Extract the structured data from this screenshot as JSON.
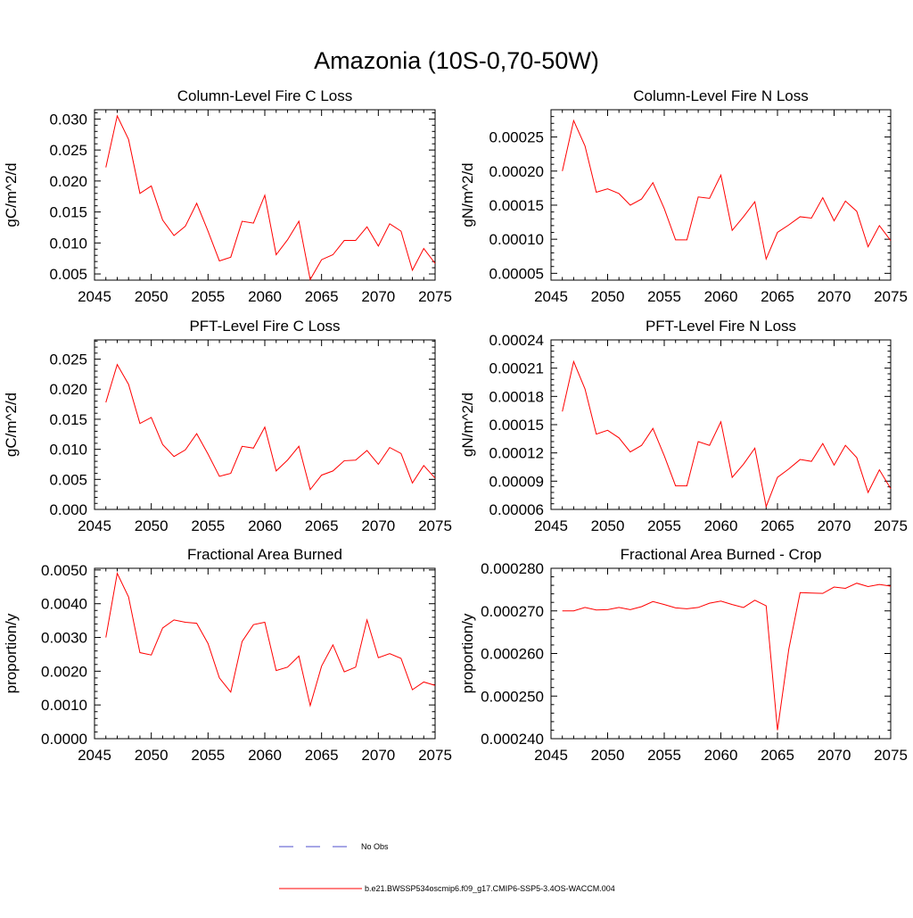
{
  "figure_title": "Amazonia (10S-0,70-50W)",
  "legend": {
    "obs_label": "No Obs",
    "model_label": "b.e21.BWSSP534oscmip6.f09_g17.CMIP6-SSP5-3.4OS-WACCM.004",
    "colors": {
      "obs": "#4d4dcc",
      "model": "#ff0000"
    }
  },
  "chart_data": [
    {
      "type": "line",
      "title": "Column-Level Fire C Loss",
      "xlabel": "",
      "ylabel": "gC/m^2/d",
      "xlim": [
        2045,
        2075
      ],
      "ylim": [
        0.004,
        0.0315
      ],
      "x_ticks": [
        "2045",
        "2050",
        "2055",
        "2060",
        "2065",
        "2070",
        "2075"
      ],
      "y_ticks": [
        "0.005",
        "0.010",
        "0.015",
        "0.020",
        "0.025",
        "0.030"
      ],
      "y_tick_values": [
        0.005,
        0.01,
        0.015,
        0.02,
        0.025,
        0.03
      ],
      "series": [
        {
          "name": "b.e21.BWSSP534oscmip6.f09_g17.CMIP6-SSP5-3.4OS-WACCM.004",
          "x": [
            2046,
            2047,
            2048,
            2049,
            2050,
            2051,
            2052,
            2053,
            2054,
            2055,
            2056,
            2057,
            2058,
            2059,
            2060,
            2061,
            2062,
            2063,
            2064,
            2065,
            2066,
            2067,
            2068,
            2069,
            2070,
            2071,
            2072,
            2073,
            2074,
            2075
          ],
          "values": [
            0.0222,
            0.0305,
            0.0267,
            0.018,
            0.0192,
            0.0137,
            0.0112,
            0.0127,
            0.0164,
            0.0119,
            0.0071,
            0.0077,
            0.0135,
            0.0132,
            0.0177,
            0.0081,
            0.0105,
            0.0135,
            0.0041,
            0.0073,
            0.0081,
            0.0104,
            0.0104,
            0.0126,
            0.0095,
            0.0131,
            0.0119,
            0.0056,
            0.0091,
            0.0067
          ]
        }
      ]
    },
    {
      "type": "line",
      "title": "Column-Level Fire N Loss",
      "xlabel": "",
      "ylabel": "gN/m^2/d",
      "xlim": [
        2045,
        2075
      ],
      "ylim": [
        4e-05,
        0.00029
      ],
      "x_ticks": [
        "2045",
        "2050",
        "2055",
        "2060",
        "2065",
        "2070",
        "2075"
      ],
      "y_ticks": [
        "0.00005",
        "0.00010",
        "0.00015",
        "0.00020",
        "0.00025"
      ],
      "y_tick_values": [
        5e-05,
        0.0001,
        0.00015,
        0.0002,
        0.00025
      ],
      "series": [
        {
          "name": "b.e21.BWSSP534oscmip6.f09_g17.CMIP6-SSP5-3.4OS-WACCM.004",
          "x": [
            2046,
            2047,
            2048,
            2049,
            2050,
            2051,
            2052,
            2053,
            2054,
            2055,
            2056,
            2057,
            2058,
            2059,
            2060,
            2061,
            2062,
            2063,
            2064,
            2065,
            2066,
            2067,
            2068,
            2069,
            2070,
            2071,
            2072,
            2073,
            2074,
            2075
          ],
          "values": [
            0.0002,
            0.000274,
            0.000237,
            0.000169,
            0.000174,
            0.000167,
            0.00015,
            0.000159,
            0.000183,
            0.000145,
            9.9e-05,
            9.9e-05,
            0.000162,
            0.00016,
            0.000194,
            0.000113,
            0.000133,
            0.000155,
            7.1e-05,
            0.00011,
            0.000121,
            0.000133,
            0.000131,
            0.000161,
            0.000127,
            0.000156,
            0.000141,
            8.9e-05,
            0.00012,
            9.8e-05
          ]
        }
      ]
    },
    {
      "type": "line",
      "title": "PFT-Level Fire C Loss",
      "xlabel": "",
      "ylabel": "gC/m^2/d",
      "xlim": [
        2045,
        2075
      ],
      "ylim": [
        0.0,
        0.0282
      ],
      "x_ticks": [
        "2045",
        "2050",
        "2055",
        "2060",
        "2065",
        "2070",
        "2075"
      ],
      "y_ticks": [
        "0.000",
        "0.005",
        "0.010",
        "0.015",
        "0.020",
        "0.025"
      ],
      "y_tick_values": [
        0.0,
        0.005,
        0.01,
        0.015,
        0.02,
        0.025
      ],
      "series": [
        {
          "name": "b.e21.BWSSP534oscmip6.f09_g17.CMIP6-SSP5-3.4OS-WACCM.004",
          "x": [
            2046,
            2047,
            2048,
            2049,
            2050,
            2051,
            2052,
            2053,
            2054,
            2055,
            2056,
            2057,
            2058,
            2059,
            2060,
            2061,
            2062,
            2063,
            2064,
            2065,
            2066,
            2067,
            2068,
            2069,
            2070,
            2071,
            2072,
            2073,
            2074,
            2075
          ],
          "values": [
            0.0178,
            0.0241,
            0.0208,
            0.0143,
            0.0153,
            0.0108,
            0.0088,
            0.0099,
            0.0126,
            0.0092,
            0.0055,
            0.006,
            0.0105,
            0.0102,
            0.0137,
            0.0064,
            0.0082,
            0.0105,
            0.0033,
            0.0057,
            0.0064,
            0.0081,
            0.0082,
            0.0098,
            0.0075,
            0.0103,
            0.0093,
            0.0044,
            0.0073,
            0.0052
          ]
        }
      ]
    },
    {
      "type": "line",
      "title": "PFT-Level Fire N Loss",
      "xlabel": "",
      "ylabel": "gN/m^2/d",
      "xlim": [
        2045,
        2075
      ],
      "ylim": [
        6e-05,
        0.00024
      ],
      "x_ticks": [
        "2045",
        "2050",
        "2055",
        "2060",
        "2065",
        "2070",
        "2075"
      ],
      "y_ticks": [
        "0.00006",
        "0.00009",
        "0.00012",
        "0.00015",
        "0.00018",
        "0.00021",
        "0.00024"
      ],
      "y_tick_values": [
        6e-05,
        9e-05,
        0.00012,
        0.00015,
        0.00018,
        0.00021,
        0.00024
      ],
      "series": [
        {
          "name": "b.e21.BWSSP534oscmip6.f09_g17.CMIP6-SSP5-3.4OS-WACCM.004",
          "x": [
            2046,
            2047,
            2048,
            2049,
            2050,
            2051,
            2052,
            2053,
            2054,
            2055,
            2056,
            2057,
            2058,
            2059,
            2060,
            2061,
            2062,
            2063,
            2064,
            2065,
            2066,
            2067,
            2068,
            2069,
            2070,
            2071,
            2072,
            2073,
            2074,
            2075
          ],
          "values": [
            0.000164,
            0.000217,
            0.000188,
            0.00014,
            0.000144,
            0.000136,
            0.000121,
            0.000128,
            0.000146,
            0.000117,
            8.5e-05,
            8.5e-05,
            0.000132,
            0.000128,
            0.000153,
            9.4e-05,
            0.000108,
            0.000125,
            6.3e-05,
            9.4e-05,
            0.000103,
            0.000113,
            0.000111,
            0.00013,
            0.000107,
            0.000128,
            0.000115,
            7.8e-05,
            0.000102,
            8.2e-05
          ]
        }
      ]
    },
    {
      "type": "line",
      "title": "Fractional Area Burned",
      "xlabel": "",
      "ylabel": "proportion/y",
      "xlim": [
        2045,
        2075
      ],
      "ylim": [
        0.0,
        0.00505
      ],
      "x_ticks": [
        "2045",
        "2050",
        "2055",
        "2060",
        "2065",
        "2070",
        "2075"
      ],
      "y_ticks": [
        "0.0000",
        "0.0010",
        "0.0020",
        "0.0030",
        "0.0040",
        "0.0050"
      ],
      "y_tick_values": [
        0.0,
        0.001,
        0.002,
        0.003,
        0.004,
        0.005
      ],
      "series": [
        {
          "name": "b.e21.BWSSP534oscmip6.f09_g17.CMIP6-SSP5-3.4OS-WACCM.004",
          "x": [
            2046,
            2047,
            2048,
            2049,
            2050,
            2051,
            2052,
            2053,
            2054,
            2055,
            2056,
            2057,
            2058,
            2059,
            2060,
            2061,
            2062,
            2063,
            2064,
            2065,
            2066,
            2067,
            2068,
            2069,
            2070,
            2071,
            2072,
            2073,
            2074,
            2075
          ],
          "values": [
            0.003,
            0.0049,
            0.0042,
            0.00255,
            0.00248,
            0.00328,
            0.00352,
            0.00345,
            0.00342,
            0.00282,
            0.0018,
            0.00138,
            0.00288,
            0.00338,
            0.00345,
            0.00202,
            0.00212,
            0.00245,
            0.00098,
            0.00215,
            0.00278,
            0.00198,
            0.00212,
            0.00352,
            0.0024,
            0.00252,
            0.00238,
            0.00145,
            0.00168,
            0.00158
          ]
        }
      ]
    },
    {
      "type": "line",
      "title": "Fractional Area Burned - Crop",
      "xlabel": "",
      "ylabel": "proportion/y",
      "xlim": [
        2045,
        2075
      ],
      "ylim": [
        0.00024,
        0.00028
      ],
      "x_ticks": [
        "2045",
        "2050",
        "2055",
        "2060",
        "2065",
        "2070",
        "2075"
      ],
      "y_ticks": [
        "0.000240",
        "0.000250",
        "0.000260",
        "0.000270",
        "0.000280"
      ],
      "y_tick_values": [
        0.00024,
        0.00025,
        0.00026,
        0.00027,
        0.00028
      ],
      "series": [
        {
          "name": "b.e21.BWSSP534oscmip6.f09_g17.CMIP6-SSP5-3.4OS-WACCM.004",
          "x": [
            2046,
            2047,
            2048,
            2049,
            2050,
            2051,
            2052,
            2053,
            2054,
            2055,
            2056,
            2057,
            2058,
            2059,
            2060,
            2061,
            2062,
            2063,
            2064,
            2065,
            2066,
            2067,
            2068,
            2069,
            2070,
            2071,
            2072,
            2073,
            2074,
            2075
          ],
          "values": [
            0.00027,
            0.00027,
            0.0002708,
            0.0002702,
            0.0002703,
            0.0002708,
            0.0002703,
            0.000271,
            0.0002722,
            0.0002715,
            0.0002707,
            0.0002705,
            0.0002708,
            0.0002718,
            0.0002723,
            0.0002715,
            0.0002708,
            0.0002725,
            0.0002712,
            0.000242,
            0.000261,
            0.0002743,
            0.0002742,
            0.0002741,
            0.0002756,
            0.0002753,
            0.0002765,
            0.0002757,
            0.0002762,
            0.0002758
          ]
        }
      ]
    }
  ]
}
